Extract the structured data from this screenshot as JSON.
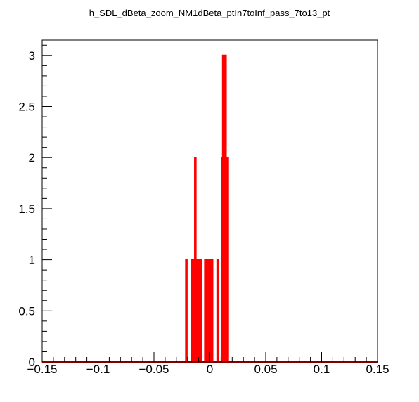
{
  "chart_data": {
    "type": "histogram",
    "title": "h_SDL_dBeta_zoom_NM1dBeta_ptIn7toInf_pass_7to13_pt",
    "xlabel": "",
    "ylabel": "",
    "xlim": [
      -0.15,
      0.15
    ],
    "ylim": [
      0,
      3.15
    ],
    "grid": false,
    "line_color": "#ff0000",
    "x_ticks": [
      -0.15,
      -0.1,
      -0.05,
      0,
      0.05,
      0.1,
      0.15
    ],
    "x_tick_labels": [
      "−0.15",
      "−0.1",
      "−0.05",
      "0",
      "0.05",
      "0.1",
      "0.15"
    ],
    "y_ticks": [
      0,
      0.5,
      1,
      1.5,
      2,
      2.5,
      3
    ],
    "y_tick_labels": [
      "0",
      "0.5",
      "1",
      "1.5",
      "2",
      "2.5",
      "3"
    ],
    "bin_width": 0.001,
    "bins": [
      {
        "x": -0.021,
        "y": 1
      },
      {
        "x": -0.016,
        "y": 1
      },
      {
        "x": -0.015,
        "y": 1
      },
      {
        "x": -0.013,
        "y": 2
      },
      {
        "x": -0.011,
        "y": 1
      },
      {
        "x": -0.01,
        "y": 1
      },
      {
        "x": -0.009,
        "y": 1
      },
      {
        "x": -0.008,
        "y": 1
      },
      {
        "x": -0.004,
        "y": 1
      },
      {
        "x": -0.003,
        "y": 1
      },
      {
        "x": -0.002,
        "y": 1
      },
      {
        "x": -0.001,
        "y": 1
      },
      {
        "x": 0.001,
        "y": 1
      },
      {
        "x": 0.002,
        "y": 1
      },
      {
        "x": 0.007,
        "y": 1
      },
      {
        "x": 0.011,
        "y": 2
      },
      {
        "x": 0.012,
        "y": 3
      },
      {
        "x": 0.014,
        "y": 3
      },
      {
        "x": 0.016,
        "y": 2
      }
    ]
  }
}
